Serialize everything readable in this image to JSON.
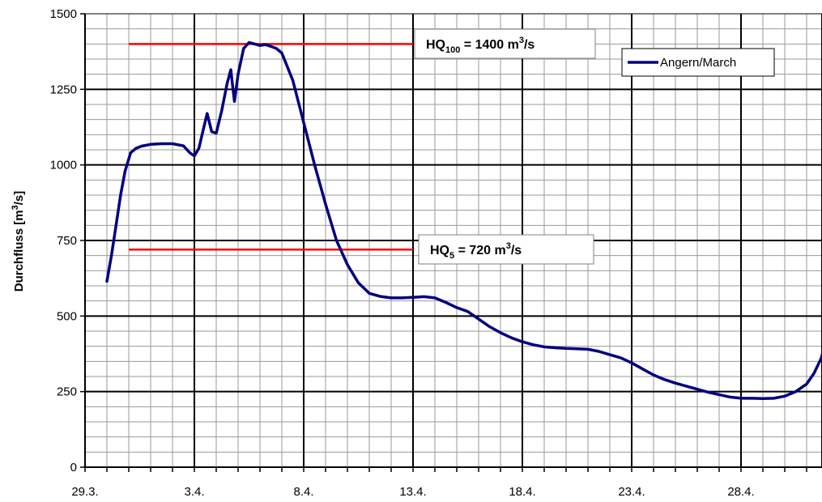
{
  "chart_data": {
    "type": "line",
    "ylabel": "Durchfluss [m³/s]",
    "ylabel_main": "Durchfluss [m",
    "ylabel_sup": "3",
    "ylabel_tail": "/s]",
    "x_range": [
      "29.3.",
      "2.5."
    ],
    "ylim": [
      0,
      1500
    ],
    "y_ticks": [
      0,
      250,
      500,
      750,
      1000,
      1250,
      1500
    ],
    "y_tick_labels": [
      "0",
      "250",
      "500",
      "750",
      "1000",
      "1250",
      "1500"
    ],
    "x_tick_labels": [
      "29.3.",
      "3.4.",
      "8.4.",
      "13.4.",
      "18.4.",
      "23.4.",
      "28.4."
    ],
    "grid": true,
    "legend_position": "top-right",
    "series": [
      {
        "name": "Angern/March",
        "color": "#000080",
        "points": [
          [
            "30.3. 00:00",
            615
          ],
          [
            "30.3. 05:00",
            700
          ],
          [
            "30.3. 10:00",
            800
          ],
          [
            "30.3. 15:00",
            900
          ],
          [
            "30.3. 20:00",
            980
          ],
          [
            "31.3. 02:00",
            1040
          ],
          [
            "31.3. 08:00",
            1055
          ],
          [
            "31.3. 14:00",
            1062
          ],
          [
            "1.4. 00:00",
            1068
          ],
          [
            "1.4. 12:00",
            1070
          ],
          [
            "2.4. 00:00",
            1070
          ],
          [
            "2.4. 12:00",
            1063
          ],
          [
            "2.4. 19:00",
            1040
          ],
          [
            "3.4. 00:00",
            1030
          ],
          [
            "3.4. 05:00",
            1055
          ],
          [
            "3.4. 10:00",
            1120
          ],
          [
            "3.4. 14:00",
            1170
          ],
          [
            "3.4. 19:00",
            1110
          ],
          [
            "4.4. 00:00",
            1105
          ],
          [
            "4.4. 06:00",
            1180
          ],
          [
            "4.4. 12:00",
            1270
          ],
          [
            "4.4. 16:00",
            1315
          ],
          [
            "4.4. 18:00",
            1260
          ],
          [
            "4.4. 20:00",
            1210
          ],
          [
            "5.4. 00:00",
            1300
          ],
          [
            "5.4. 06:00",
            1385
          ],
          [
            "5.4. 12:00",
            1405
          ],
          [
            "5.4. 18:00",
            1400
          ],
          [
            "6.4. 00:00",
            1395
          ],
          [
            "6.4. 06:00",
            1398
          ],
          [
            "6.4. 12:00",
            1392
          ],
          [
            "6.4. 18:00",
            1385
          ],
          [
            "7.4. 00:00",
            1370
          ],
          [
            "7.4. 12:00",
            1280
          ],
          [
            "8.4. 00:00",
            1140
          ],
          [
            "8.4. 12:00",
            1000
          ],
          [
            "9.4. 00:00",
            870
          ],
          [
            "9.4. 12:00",
            750
          ],
          [
            "10.4. 00:00",
            670
          ],
          [
            "10.4. 12:00",
            610
          ],
          [
            "11.4. 00:00",
            575
          ],
          [
            "11.4. 12:00",
            565
          ],
          [
            "12.4. 00:00",
            560
          ],
          [
            "12.4. 12:00",
            560
          ],
          [
            "13.4. 00:00",
            562
          ],
          [
            "13.4. 12:00",
            564
          ],
          [
            "14.4. 00:00",
            560
          ],
          [
            "14.4. 12:00",
            545
          ],
          [
            "15.4. 00:00",
            528
          ],
          [
            "15.4. 12:00",
            515
          ],
          [
            "16.4. 00:00",
            490
          ],
          [
            "16.4. 12:00",
            465
          ],
          [
            "17.4. 00:00",
            445
          ],
          [
            "17.4. 12:00",
            428
          ],
          [
            "18.4. 00:00",
            415
          ],
          [
            "18.4. 12:00",
            405
          ],
          [
            "19.4. 00:00",
            398
          ],
          [
            "19.4. 12:00",
            395
          ],
          [
            "20.4. 00:00",
            393
          ],
          [
            "20.4. 12:00",
            392
          ],
          [
            "21.4. 00:00",
            390
          ],
          [
            "21.4. 12:00",
            383
          ],
          [
            "22.4. 00:00",
            372
          ],
          [
            "22.4. 12:00",
            362
          ],
          [
            "23.4. 00:00",
            345
          ],
          [
            "23.4. 12:00",
            325
          ],
          [
            "24.4. 00:00",
            305
          ],
          [
            "24.4. 12:00",
            290
          ],
          [
            "25.4. 00:00",
            278
          ],
          [
            "25.4. 12:00",
            268
          ],
          [
            "26.4. 00:00",
            258
          ],
          [
            "26.4. 12:00",
            248
          ],
          [
            "27.4. 00:00",
            240
          ],
          [
            "27.4. 12:00",
            232
          ],
          [
            "28.4. 00:00",
            228
          ],
          [
            "28.4. 12:00",
            228
          ],
          [
            "29.4. 00:00",
            227
          ],
          [
            "29.4. 12:00",
            228
          ],
          [
            "30.4. 00:00",
            235
          ],
          [
            "30.4. 12:00",
            250
          ],
          [
            "1.5. 00:00",
            275
          ],
          [
            "1.5. 08:00",
            310
          ],
          [
            "1.5. 16:00",
            360
          ],
          [
            "2.5. 00:00",
            450
          ]
        ]
      }
    ],
    "reference_lines": [
      {
        "label": "HQ100 = 1400 m³/s",
        "text_main": "HQ",
        "text_sub": "100",
        "text_mid": " = 1400 m",
        "text_sup": "3",
        "text_tail": "/s",
        "value": 1400,
        "x_start": "31.3.",
        "x_end": "13.4.",
        "color": "#ff0000"
      },
      {
        "label": "HQ5 = 720 m³/s",
        "text_main": "HQ",
        "text_sub": "5",
        "text_mid": " = 720 m",
        "text_sup": "3",
        "text_tail": "/s",
        "value": 720,
        "x_start": "31.3.",
        "x_end": "13.4.",
        "color": "#ff0000"
      }
    ]
  }
}
